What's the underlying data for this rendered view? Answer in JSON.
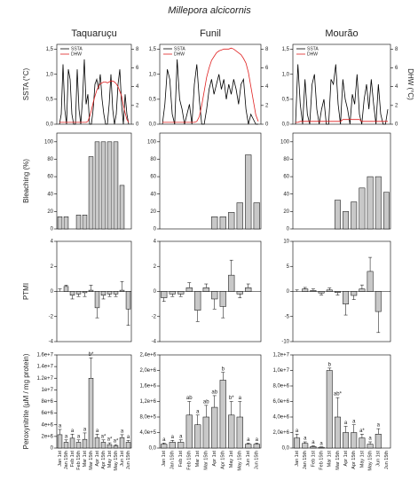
{
  "title": "Millepora alcicornis",
  "chart_data": [
    {
      "type": "line",
      "title": "Taquaruçu",
      "ylabel": "SSTA (°C)",
      "ylim": [
        0,
        1.6
      ],
      "yticks": [
        {
          "value": 0,
          "label": "0,0"
        },
        {
          "value": 0.5,
          "label": "0,5"
        },
        {
          "value": 1,
          "label": "1,0"
        },
        {
          "value": 1.5,
          "label": "1,5"
        }
      ],
      "y2lim": [
        0,
        8.5
      ],
      "y2ticks": [
        0,
        2,
        4,
        6,
        8
      ],
      "series": [
        {
          "name": "SSTA",
          "color": "#000000",
          "values": [
            0,
            0.2,
            1.2,
            0.3,
            0,
            1.1,
            0.9,
            0.2,
            0,
            0,
            1.1,
            0.3,
            0,
            0.5,
            1.3,
            0.4,
            0.6,
            0,
            0,
            0.3,
            0.8,
            0.9,
            0.7,
            1.0,
            0.5,
            0.2,
            0,
            0,
            0.4,
            1.0,
            0.3,
            0,
            0.2,
            0.8,
            1.1,
            0.4,
            0,
            0.6,
            0.2,
            0
          ]
        },
        {
          "name": "DHW",
          "color": "#e02020",
          "axis": "y2",
          "values": [
            0.2,
            0.2,
            0.2,
            0.2,
            0.2,
            0.2,
            0.2,
            0.2,
            0.2,
            0.2,
            0.2,
            0.2,
            0.2,
            0.2,
            0.2,
            0.2,
            0.3,
            0.8,
            1.5,
            2.3,
            3.0,
            3.6,
            4.0,
            4.3,
            4.4,
            4.5,
            4.5,
            4.4,
            4.5,
            4.6,
            4.6,
            4.5,
            4.3,
            4.0,
            3.5,
            3.0,
            2.0,
            1.2,
            0.5,
            0.2
          ]
        }
      ]
    },
    {
      "type": "line",
      "title": "Funil",
      "ylim": [
        0,
        1.6
      ],
      "yticks": [
        {
          "value": 0,
          "label": "0,0"
        },
        {
          "value": 0.5,
          "label": "0,5"
        },
        {
          "value": 1,
          "label": "1,0"
        },
        {
          "value": 1.5,
          "label": "1,5"
        }
      ],
      "y2lim": [
        0,
        8.5
      ],
      "y2ticks": [
        0,
        2,
        4,
        6,
        8
      ],
      "series": [
        {
          "name": "SSTA",
          "color": "#000000",
          "values": [
            0,
            0.4,
            1.1,
            0.9,
            0.2,
            0,
            1.3,
            0.5,
            0.3,
            0,
            0.2,
            0.4,
            0,
            0.8,
            1.2,
            0.5,
            0,
            0,
            0.3,
            0.7,
            0.9,
            0.6,
            0.8,
            1.0,
            0.7,
            0.9,
            0.5,
            0.8,
            0.6,
            0.9,
            0.7,
            0.4,
            0.8,
            0.9,
            0.3,
            0,
            0.2,
            0.1,
            0,
            0
          ]
        },
        {
          "name": "DHW",
          "color": "#e02020",
          "axis": "y2",
          "values": [
            0.2,
            0.2,
            0.2,
            0.2,
            0.2,
            0.2,
            0.2,
            0.2,
            0.2,
            0.2,
            0.2,
            0.2,
            0.2,
            0.2,
            0.3,
            0.8,
            2,
            3.5,
            5,
            6,
            6.8,
            7.2,
            7.6,
            7.8,
            7.9,
            8,
            8,
            8,
            8.1,
            8,
            7.8,
            7.6,
            7.4,
            7,
            6.5,
            5.5,
            4,
            2.5,
            1,
            0.3
          ]
        }
      ]
    },
    {
      "type": "line",
      "title": "Mourão",
      "y2label": "DHW (°C)",
      "ylim": [
        0,
        1.6
      ],
      "yticks": [
        {
          "value": 0,
          "label": "0,0"
        },
        {
          "value": 0.5,
          "label": "0,5"
        },
        {
          "value": 1,
          "label": "1,0"
        },
        {
          "value": 1.5,
          "label": "1,5"
        }
      ],
      "y2lim": [
        0,
        8.5
      ],
      "y2ticks": [
        0,
        2,
        4,
        6,
        8
      ],
      "series": [
        {
          "name": "SSTA",
          "color": "#000000",
          "values": [
            0,
            1.2,
            0.4,
            0,
            0.9,
            0.2,
            0,
            0.8,
            1.0,
            0.3,
            0,
            0.3,
            0.5,
            0,
            0,
            0.9,
            0.8,
            1.2,
            0.4,
            0,
            0.9,
            0.5,
            0.3,
            0,
            0.6,
            0.4,
            1.0,
            0.2,
            0,
            0.5,
            0.8,
            0.3,
            0.9,
            0.4,
            0,
            0.8,
            0.2,
            0,
            0,
            0.3
          ]
        },
        {
          "name": "DHW",
          "color": "#e02020",
          "axis": "y2",
          "values": [
            0.2,
            0.2,
            0.3,
            0.3,
            0.3,
            0.3,
            0.3,
            0.3,
            0.3,
            0.3,
            0.3,
            0.3,
            0.3,
            0.3,
            0.3,
            0.3,
            0.3,
            0.3,
            0.3,
            0.3,
            0.5,
            0.5,
            0.5,
            0.5,
            0.5,
            0.5,
            0.5,
            0.5,
            0.3,
            0.3,
            0.3,
            0.3,
            0.3,
            0.3,
            0.3,
            0.3,
            0.3,
            0.3,
            0.3,
            0.3
          ]
        }
      ]
    },
    {
      "type": "bar",
      "ylabel": "Bleaching (%)",
      "color": "#c8c8c8",
      "ylim": [
        0,
        110
      ],
      "yticks": [
        0,
        20,
        40,
        60,
        80,
        100
      ],
      "values": [
        14,
        14,
        null,
        16,
        16,
        83,
        100,
        100,
        100,
        100,
        50,
        null
      ]
    },
    {
      "type": "bar",
      "color": "#c8c8c8",
      "ylim": [
        0,
        110
      ],
      "yticks": [
        0,
        20,
        40,
        60,
        80,
        100
      ],
      "values": [
        null,
        null,
        null,
        null,
        null,
        null,
        14,
        14,
        19,
        30,
        85,
        30
      ]
    },
    {
      "type": "bar",
      "color": "#c8c8c8",
      "ylim": [
        0,
        110
      ],
      "yticks": [
        0,
        20,
        40,
        60,
        80,
        100
      ],
      "values": [
        null,
        null,
        null,
        null,
        null,
        33,
        20,
        31,
        47,
        60,
        60,
        42
      ]
    },
    {
      "type": "bar",
      "ylabel": "PTMI",
      "color": "#c8c8c8",
      "ylim": [
        -4,
        4
      ],
      "yticks": [
        -4,
        -2,
        0,
        2,
        4
      ],
      "values": [
        0.0,
        0.4,
        -0.3,
        -0.2,
        -0.1,
        0.1,
        -1.3,
        -0.3,
        -0.2,
        -0.2,
        0.1,
        -1.4
      ],
      "errors": [
        0.2,
        0.1,
        0.3,
        0.2,
        0.3,
        0.4,
        0.8,
        0.3,
        0.2,
        0.2,
        0.7,
        1.3
      ]
    },
    {
      "type": "bar",
      "color": "#c8c8c8",
      "ylim": [
        -4,
        4
      ],
      "yticks": [
        -4,
        -2,
        0,
        2,
        4
      ],
      "values": [
        -0.5,
        -0.2,
        -0.2,
        0.3,
        -1.5,
        0.3,
        -0.6,
        -1.2,
        1.3,
        -0.2,
        0.3,
        null
      ],
      "errors": [
        0.3,
        0.2,
        0.2,
        0.4,
        0.9,
        0.3,
        0.8,
        0.9,
        1.2,
        0.3,
        0.3,
        null
      ]
    },
    {
      "type": "bar",
      "color": "#c8c8c8",
      "ylim": [
        -10,
        10
      ],
      "yticks": [
        -10,
        -5,
        0,
        5,
        10
      ],
      "values": [
        0,
        0.5,
        0.2,
        -0.3,
        0.3,
        -0.2,
        -2.5,
        -0.8,
        0.5,
        4.0,
        -4.0,
        null
      ],
      "errors": [
        0.3,
        0.3,
        0.3,
        0.4,
        0.4,
        0.5,
        2.2,
        0.8,
        0.8,
        2.8,
        4.2,
        null
      ]
    },
    {
      "type": "bar",
      "ylabel": "Peroxynitrite (µM / mg protein)",
      "color": "#c8c8c8",
      "ylim": [
        0,
        16000000
      ],
      "yticks": [
        0,
        {
          "value": 2000000,
          "label": "2e+6"
        },
        {
          "value": 4000000,
          "label": "4e+6"
        },
        {
          "value": 6000000,
          "label": "6e+6"
        },
        {
          "value": 8000000,
          "label": "8e+6"
        },
        {
          "value": 10000000,
          "label": "1e+7"
        },
        {
          "value": 12000000,
          "label": "1.2e+7"
        },
        {
          "value": 14000000,
          "label": "1.4e+7"
        },
        {
          "value": 16000000,
          "label": "1.6e+7"
        }
      ],
      "categories": [
        "Jan 1st",
        "Jan 15th",
        "Feb 1st",
        "Feb 15th",
        "Mar 1st",
        "Mar 15th",
        "Apr 1st",
        "Apr 15th",
        "May 1st",
        "May 15th",
        "Jun 1st",
        "Jun 15th"
      ],
      "values": [
        2300000,
        1000000,
        1700000,
        1000000,
        1500000,
        12000000,
        1800000,
        1000000,
        600000,
        400000,
        1800000,
        1000000
      ],
      "errors": [
        900000,
        400000,
        700000,
        400000,
        1100000,
        3500000,
        600000,
        400000,
        300000,
        200000,
        500000,
        300000
      ],
      "letters": [
        "a",
        "a",
        "a",
        "a",
        "a",
        "b*",
        "a",
        "a*",
        "a*",
        "a*",
        "a",
        "a"
      ]
    },
    {
      "type": "bar",
      "color": "#c8c8c8",
      "ylim": [
        0,
        2400000
      ],
      "yticks": [
        {
          "value": 0,
          "label": "0,0"
        },
        {
          "value": 400000,
          "label": "4,0e+5"
        },
        {
          "value": 800000,
          "label": "8,0e+5"
        },
        {
          "value": 1200000,
          "label": "1,2e+6"
        },
        {
          "value": 1600000,
          "label": "1,6e+6"
        },
        {
          "value": 2000000,
          "label": "2,0e+6"
        },
        {
          "value": 2400000,
          "label": "2,4e+6"
        }
      ],
      "categories": [
        "Jan 1st",
        "Jan 15th",
        "Feb 1st",
        "Feb 15th",
        "Mar 1st",
        "Mar 15th",
        "Apr 1st",
        "Apr 15th",
        "May 1st",
        "May 15th",
        "Jun 1st",
        "Jun 15th"
      ],
      "values": [
        100000,
        150000,
        150000,
        850000,
        600000,
        800000,
        1050000,
        1750000,
        850000,
        800000,
        100000,
        100000
      ],
      "errors": [
        30000,
        50000,
        60000,
        350000,
        250000,
        300000,
        300000,
        200000,
        350000,
        400000,
        30000,
        30000
      ],
      "letters": [
        "a",
        "a",
        "a",
        "ab",
        "a",
        "ab",
        "ab",
        "b",
        "b*",
        "a",
        "a",
        "a"
      ]
    },
    {
      "type": "bar",
      "color": "#c8c8c8",
      "ylim": [
        0,
        12000000
      ],
      "yticks": [
        {
          "value": 0,
          "label": "0,0"
        },
        {
          "value": 2000000,
          "label": "2,0e+6"
        },
        {
          "value": 4000000,
          "label": "4,0e+6"
        },
        {
          "value": 6000000,
          "label": "6,0e+6"
        },
        {
          "value": 8000000,
          "label": "8,0e+6"
        },
        {
          "value": 10000000,
          "label": "1,0e+7"
        },
        {
          "value": 12000000,
          "label": "1,2e+7"
        }
      ],
      "categories": [
        "Jan 1st",
        "Jan 15th",
        "Feb 1st",
        "Feb 15th",
        "Mar 1st",
        "Mar 15th",
        "Apr 1st",
        "Apr 15th",
        "May 1st",
        "May 15th",
        "Jun 1st",
        "Jun 15th"
      ],
      "values": [
        1300000,
        600000,
        200000,
        100000,
        10000000,
        4000000,
        2000000,
        2000000,
        1300000,
        500000,
        1800000,
        null
      ],
      "errors": [
        500000,
        200000,
        100000,
        50000,
        300000,
        2500000,
        800000,
        1000000,
        500000,
        300000,
        700000,
        null
      ],
      "letters": [
        "a",
        "a",
        "a",
        "a",
        "b",
        "ab*",
        "a",
        "a",
        "a*",
        "a",
        "a",
        null
      ]
    }
  ]
}
